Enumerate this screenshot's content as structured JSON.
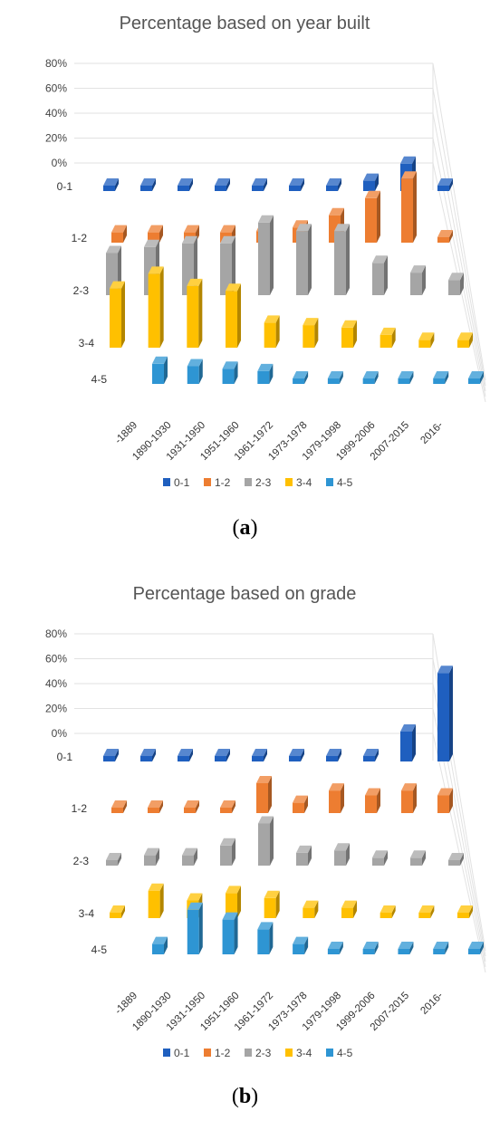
{
  "captions": [
    {
      "open": "(",
      "letter": "a",
      "close": ")"
    },
    {
      "open": "(",
      "letter": "b",
      "close": ")"
    }
  ],
  "chart_data": [
    {
      "type": "bar",
      "title": "Percentage based on year built",
      "categories": [
        "-1889",
        "1890-1930",
        "1931-1950",
        "1951-1960",
        "1961-1972",
        "1973-1978",
        "1979-1998",
        "1999-2006",
        "2007-2015",
        "2016-"
      ],
      "y_ticks": [
        "80%",
        "60%",
        "40%",
        "20%",
        "0%"
      ],
      "ylim": [
        0,
        80
      ],
      "series": [
        {
          "name": "0-1",
          "color": "#1f5fbf",
          "values": [
            0,
            0,
            0,
            0,
            0,
            0,
            0,
            4,
            18,
            0
          ]
        },
        {
          "name": "1-2",
          "color": "#ed7d31",
          "values": [
            4,
            4,
            4,
            4,
            5,
            8,
            18,
            32,
            48,
            0
          ]
        },
        {
          "name": "2-3",
          "color": "#a5a5a5",
          "values": [
            30,
            35,
            38,
            38,
            55,
            48,
            48,
            22,
            14,
            8
          ]
        },
        {
          "name": "3-4",
          "color": "#ffc000",
          "values": [
            44,
            56,
            46,
            42,
            16,
            14,
            12,
            6,
            2,
            2
          ]
        },
        {
          "name": "4-5",
          "color": "#2e95d3",
          "values": [
            12,
            10,
            8,
            6,
            0,
            0,
            0,
            0,
            0,
            0
          ]
        }
      ]
    },
    {
      "type": "bar",
      "title": "Percentage based on grade",
      "categories": [
        "-1889",
        "1890-1930",
        "1931-1950",
        "1951-1960",
        "1961-1972",
        "1973-1978",
        "1979-1998",
        "1999-2006",
        "2007-2015",
        "2016-"
      ],
      "y_ticks": [
        "80%",
        "60%",
        "40%",
        "20%",
        "0%"
      ],
      "ylim": [
        0,
        80
      ],
      "series": [
        {
          "name": "0-1",
          "color": "#1f5fbf",
          "values": [
            0,
            0,
            0,
            0,
            0,
            0,
            0,
            0,
            20,
            68
          ]
        },
        {
          "name": "1-2",
          "color": "#ed7d31",
          "values": [
            0,
            0,
            0,
            0,
            20,
            4,
            14,
            10,
            14,
            10
          ]
        },
        {
          "name": "2-3",
          "color": "#a5a5a5",
          "values": [
            0,
            4,
            4,
            12,
            30,
            6,
            8,
            2,
            2,
            0
          ]
        },
        {
          "name": "3-4",
          "color": "#ffc000",
          "values": [
            0,
            18,
            10,
            16,
            12,
            4,
            4,
            0,
            0,
            0
          ]
        },
        {
          "name": "4-5",
          "color": "#2e95d3",
          "values": [
            4,
            32,
            24,
            16,
            4,
            0,
            0,
            0,
            0,
            0
          ]
        }
      ]
    }
  ]
}
